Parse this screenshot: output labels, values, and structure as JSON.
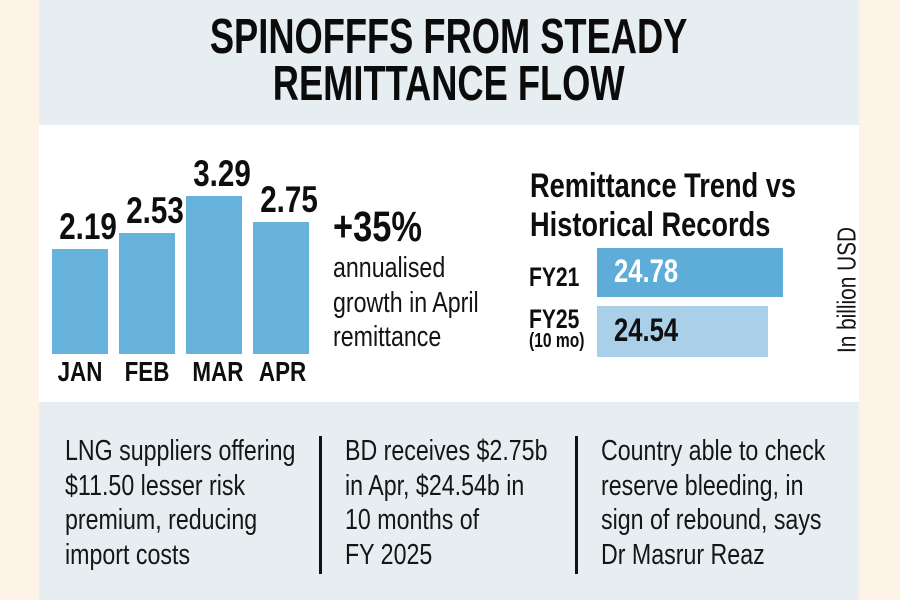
{
  "header": {
    "title_line1": "SPINOFFFS FROM STEADY",
    "title_line2": "REMITTANCE FLOW"
  },
  "chart_data": [
    {
      "type": "bar",
      "orientation": "vertical",
      "categories": [
        "JAN",
        "FEB",
        "MAR",
        "APR"
      ],
      "values": [
        2.19,
        2.53,
        3.29,
        2.75
      ],
      "value_labels": [
        "2.19",
        "2.53",
        "3.29",
        "2.75"
      ],
      "ylim": [
        0,
        3.5
      ],
      "grid": false,
      "annotation": "+35% annualised growth in April remittance",
      "bar_color": "#66b2dd"
    },
    {
      "type": "bar",
      "orientation": "horizontal",
      "title": "Remittance Trend vs Historical Records",
      "categories": [
        "FY21",
        "FY25 (10 mo)"
      ],
      "values": [
        24.78,
        24.54
      ],
      "value_labels": [
        "24.78",
        "24.54"
      ],
      "unit_label": "In billion USD",
      "grid": false,
      "bar_colors": [
        "#5eacd8",
        "#aacfe9"
      ]
    }
  ],
  "monthly": {
    "bars": [
      {
        "label": "JAN",
        "value": "2.19"
      },
      {
        "label": "FEB",
        "value": "2.53"
      },
      {
        "label": "MAR",
        "value": "3.29"
      },
      {
        "label": "APR",
        "value": "2.75"
      }
    ]
  },
  "growth": {
    "headline": "+35%",
    "line1": "annualised",
    "line2": "growth in April",
    "line3": "remittance"
  },
  "trend": {
    "title_line1": "Remittance Trend vs",
    "title_line2": "Historical Records",
    "rows": [
      {
        "label": "FY21",
        "sub": "",
        "value": "24.78"
      },
      {
        "label": "FY25",
        "sub": "(10 mo)",
        "value": "24.54"
      }
    ],
    "axis_label": "In billion USD"
  },
  "bottom": {
    "cards": [
      {
        "lines": [
          "LNG suppliers offering",
          "$11.50 lesser risk",
          "premium, reducing",
          "import costs"
        ]
      },
      {
        "lines": [
          "BD receives $2.75b",
          "in Apr, $24.54b in",
          "10 months of",
          "FY 2025"
        ]
      },
      {
        "lines": [
          "Country able to check",
          "reserve bleeding, in",
          "sign of rebound, says",
          "Dr Masrur Reaz"
        ]
      }
    ]
  },
  "colors": {
    "cream": "#fdf3e6",
    "panel": "#e7eef2",
    "bar_blue": "#66b2dd",
    "fy21_blue": "#5eacd8",
    "fy25_blue": "#aacfe9"
  }
}
